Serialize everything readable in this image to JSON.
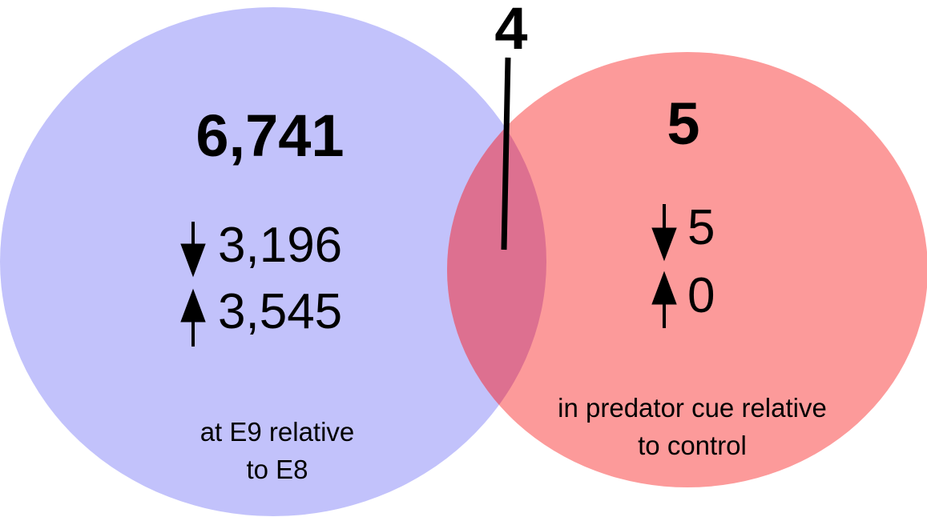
{
  "colors": {
    "left_set": "#c2c2fb",
    "right_set": "#fc9a9a",
    "overlap": "#dd7090"
  },
  "left_set": {
    "total": "6,741",
    "down_count": "3,196",
    "up_count": "3,545",
    "down_icon": "down-arrow-icon",
    "up_icon": "up-arrow-icon",
    "caption_line1": "at E9 relative",
    "caption_line2": "to E8"
  },
  "right_set": {
    "total": "5",
    "down_count": "5",
    "up_count": "0",
    "down_icon": "down-arrow-icon",
    "up_icon": "up-arrow-icon",
    "caption_line1": "in predator cue relative",
    "caption_line2": "to control"
  },
  "overlap": {
    "count": "4"
  }
}
